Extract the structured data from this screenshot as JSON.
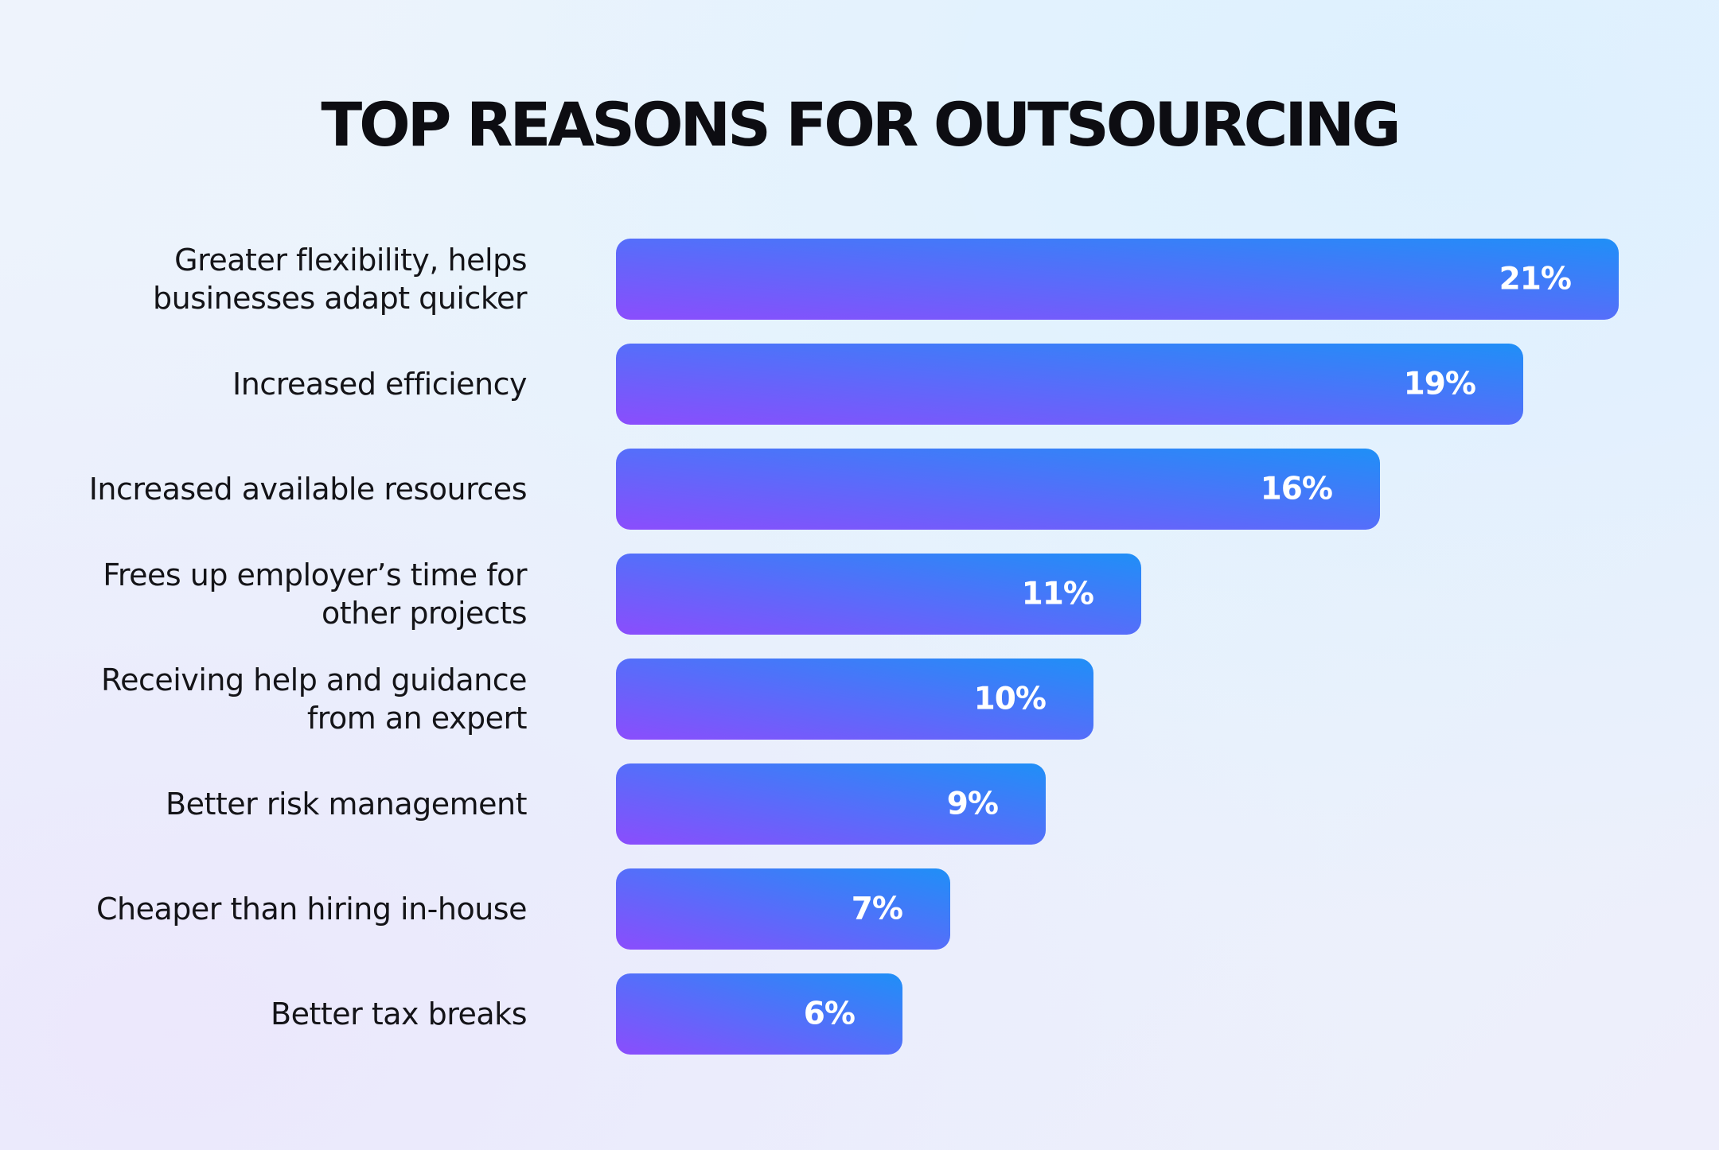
{
  "chart_data": {
    "type": "bar",
    "orientation": "horizontal",
    "title": "TOP REASONS FOR OUTSOURCING",
    "unit": "%",
    "categories": [
      [
        "Greater flexibility, helps",
        "businesses adapt quicker"
      ],
      [
        "Increased efficiency"
      ],
      [
        "Increased available resources"
      ],
      [
        "Frees up employer’s time for",
        "other projects"
      ],
      [
        "Receiving help and guidance",
        "from an expert"
      ],
      [
        "Better risk management"
      ],
      [
        "Cheaper than hiring in-house"
      ],
      [
        "Better tax breaks"
      ]
    ],
    "values": [
      21,
      19,
      16,
      11,
      10,
      9,
      7,
      6
    ],
    "value_labels": [
      "21%",
      "19%",
      "16%",
      "11%",
      "10%",
      "9%",
      "7%",
      "6%"
    ],
    "xlim": [
      0,
      21
    ],
    "grid": false,
    "legend": "none",
    "colors": {
      "bar_gradient_start": "#8b4dfc",
      "bar_gradient_end": "#1f8ff7",
      "label_text": "#141418",
      "value_text": "#ffffff",
      "title_text": "#0d0d12"
    }
  }
}
